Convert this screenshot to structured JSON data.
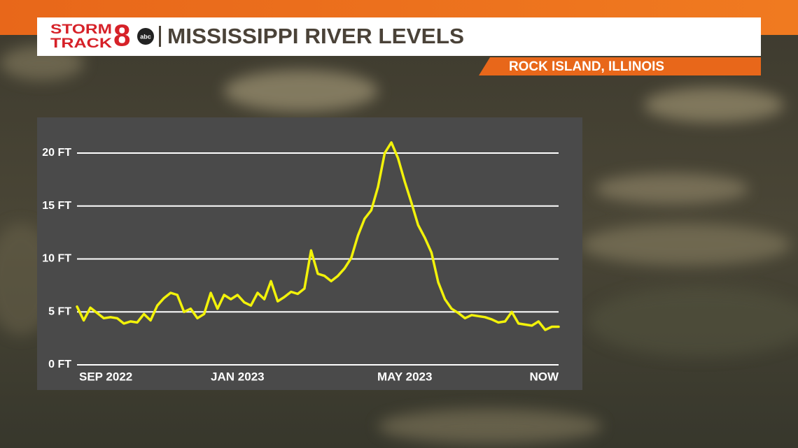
{
  "header": {
    "logo_line1": "STORM",
    "logo_line2": "TRACK",
    "logo_number": "8",
    "logo_network": "abc"
  },
  "chart_data": {
    "type": "line",
    "title": "MISSISSIPPI RIVER LEVELS",
    "subtitle": "ROCK ISLAND, ILLINOIS",
    "categories": [
      "SEP 2022",
      null,
      null,
      null,
      null,
      null,
      null,
      null,
      null,
      null,
      null,
      null,
      null,
      null,
      null,
      null,
      null,
      null,
      null,
      null,
      null,
      null,
      null,
      null,
      "JAN 2023",
      null,
      null,
      null,
      null,
      null,
      null,
      null,
      null,
      null,
      null,
      null,
      null,
      null,
      null,
      null,
      null,
      null,
      null,
      null,
      null,
      null,
      null,
      null,
      null,
      "MAY 2023",
      null,
      null,
      null,
      null,
      null,
      null,
      null,
      null,
      null,
      null,
      null,
      null,
      null,
      null,
      null,
      null,
      null,
      null,
      null,
      null,
      null,
      null,
      "NOW"
    ],
    "values": [
      5.5,
      4.2,
      5.4,
      4.9,
      4.4,
      4.5,
      4.4,
      3.9,
      4.1,
      4.0,
      4.8,
      4.2,
      5.6,
      6.3,
      6.8,
      6.6,
      5.0,
      5.3,
      4.4,
      4.8,
      6.8,
      5.3,
      6.6,
      6.2,
      6.6,
      5.9,
      5.6,
      6.8,
      6.2,
      7.9,
      6.0,
      6.4,
      6.9,
      6.7,
      7.2,
      10.8,
      8.6,
      8.4,
      7.9,
      8.4,
      9.1,
      10.1,
      12.2,
      13.8,
      14.6,
      16.8,
      20.0,
      21.0,
      19.5,
      17.3,
      15.3,
      13.2,
      12.0,
      10.6,
      7.8,
      6.2,
      5.3,
      4.9,
      4.4,
      4.7,
      4.6,
      4.5,
      4.3,
      4.0,
      4.1,
      5.0,
      3.9,
      3.8,
      3.7,
      4.1,
      3.3,
      3.6,
      3.6
    ],
    "color": "#f2f20a",
    "ylim": [
      0,
      22
    ],
    "yticks": [
      {
        "value": 0,
        "label": "0 FT"
      },
      {
        "value": 5,
        "label": "5 FT"
      },
      {
        "value": 10,
        "label": "10 FT"
      },
      {
        "value": 15,
        "label": "15 FT"
      },
      {
        "value": 20,
        "label": "20 FT"
      }
    ],
    "grid": true
  }
}
